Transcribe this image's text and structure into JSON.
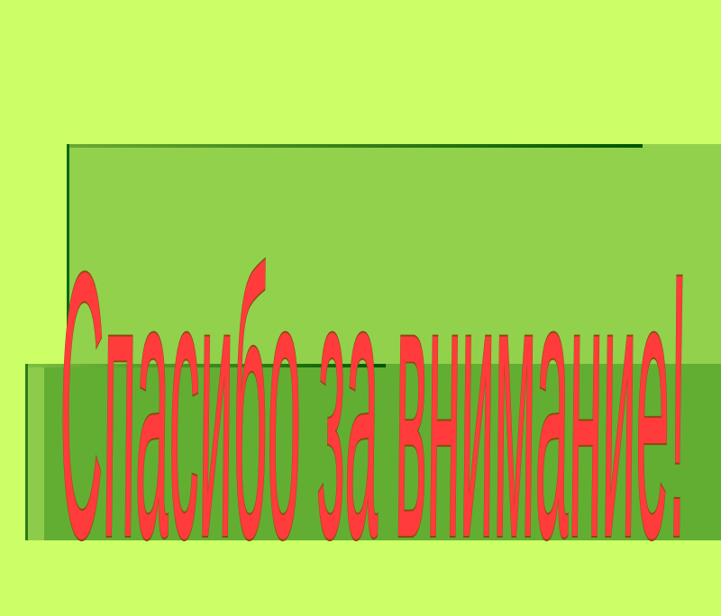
{
  "slide": {
    "title": "Спасибо за внимание!",
    "colors": {
      "background": "#ccff66",
      "panel_upper": "#92d14c",
      "panel_lower": "#62ae32",
      "border": "#005500",
      "text_fill": "#ff3b3b",
      "text_outline": "#8a4a10"
    }
  }
}
